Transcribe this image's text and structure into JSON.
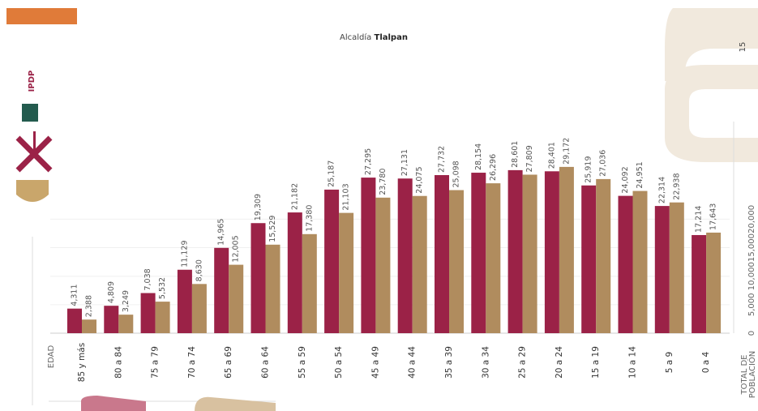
{
  "header": {
    "title_prefix": "Alcaldía",
    "title_name": "Tlalpan",
    "page_number": "15",
    "logo_text": "IPDP"
  },
  "chart_data": {
    "type": "bar",
    "x_axis_title": "EDAD",
    "y_axis_title": [
      "TOTAL DE",
      "POBLACIÓN"
    ],
    "categories": [
      "85 y más",
      "80 a 84",
      "75 a 79",
      "70 a 74",
      "65 a 69",
      "60 a 64",
      "55 a 59",
      "50 a 54",
      "45 a 49",
      "40 a 44",
      "35 a 39",
      "30 a 34",
      "25 a 29",
      "20 a 24",
      "15 a 19",
      "10 a 14",
      "5 a 9",
      "0 a 4"
    ],
    "series": [
      {
        "color": "#9b2247",
        "values": [
          4311,
          4809,
          7038,
          11129,
          14965,
          19309,
          21182,
          25187,
          27295,
          27131,
          27732,
          28154,
          28601,
          28401,
          25919,
          24092,
          22314,
          17214
        ],
        "value_labels": [
          "4,311",
          "4,809",
          "7,038",
          "11,129",
          "14,965",
          "19,309",
          "21,182",
          "25,187",
          "27,295",
          "27,131",
          "27,732",
          "28,154",
          "28,601",
          "28,401",
          "25,919",
          "24,092",
          "22,314",
          "17,214"
        ]
      },
      {
        "color": "#b08c5e",
        "values": [
          2388,
          3249,
          5532,
          8630,
          12005,
          15529,
          17380,
          21103,
          23780,
          24075,
          25098,
          26296,
          27809,
          29172,
          27036,
          24951,
          22938,
          17643
        ],
        "value_labels": [
          "2,388",
          "3,249",
          "5,532",
          "8,630",
          "12,005",
          "15,529",
          "17,380",
          "21,103",
          "23,780",
          "24,075",
          "25,098",
          "26,296",
          "27,809",
          "29,172",
          "27,036",
          "24,951",
          "22,938",
          "17,643"
        ]
      }
    ],
    "ylim": [
      0,
      32000
    ],
    "yticks": [
      0,
      {
        "value": 5000,
        "label": "5,000"
      },
      {
        "value": 10000,
        "label": "10,000"
      },
      {
        "value": 15000,
        "label": "15,000"
      },
      {
        "value": 20000,
        "label": "20,000"
      }
    ],
    "grid": true
  }
}
